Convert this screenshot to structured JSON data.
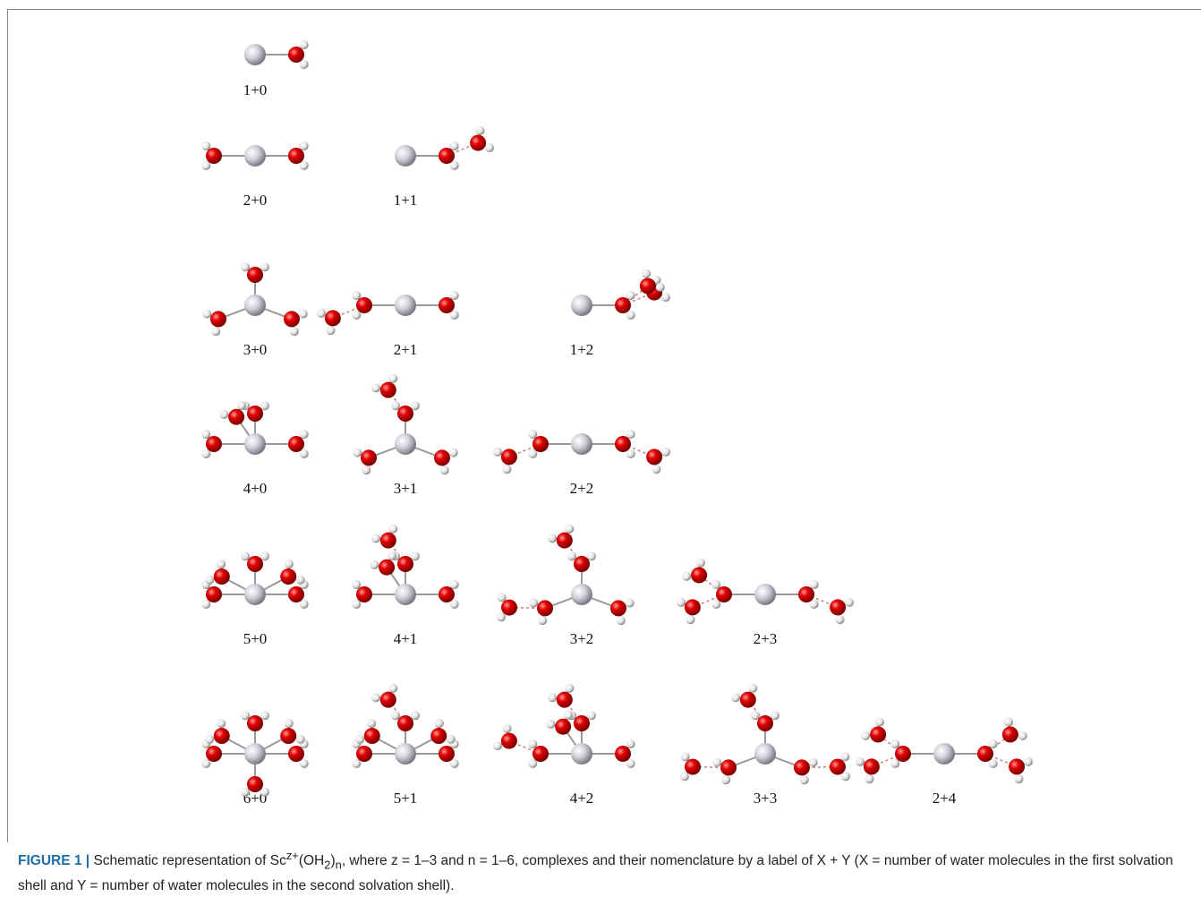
{
  "figure": {
    "labels": [
      [
        "1+0"
      ],
      [
        "2+0",
        "1+1"
      ],
      [
        "3+0",
        "2+1",
        "1+2"
      ],
      [
        "4+0",
        "3+1",
        "2+2"
      ],
      [
        "5+0",
        "4+1",
        "3+2",
        "2+3"
      ],
      [
        "6+0",
        "5+1",
        "4+2",
        "3+3",
        "2+4"
      ]
    ],
    "caption": {
      "label": "FIGURE 1 |",
      "text_1": " Schematic representation of Sc",
      "sup": "z+",
      "text_2": "(OH",
      "sub_1": "2",
      "text_3": ")",
      "sub_2": "n",
      "text_4": ", where z = 1–3 and n = 1–6, complexes and their nomenclature by a label of X + Y (X = number of water molecules in the first solvation shell and Y = number of water molecules in the second solvation shell)."
    }
  }
}
